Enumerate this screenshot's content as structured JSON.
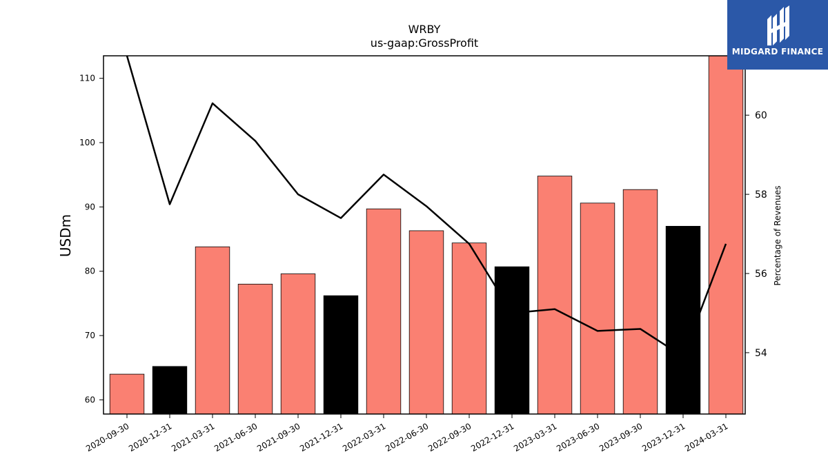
{
  "header": {
    "title_line1": "WRBY",
    "title_line2": "us-gaap:GrossProfit"
  },
  "logo": {
    "text": "MIDGARD FINANCE",
    "icon": "midgard-logo-icon",
    "background": "#2b58a8"
  },
  "chart_data": {
    "type": "bar",
    "title": "WRBY\nus-gaap:GrossProfit",
    "ylabel": "USDm",
    "y2label": "Percentage of Revenues",
    "ylim": [
      57.8,
      113.5
    ],
    "y2lim": [
      52.45,
      61.5
    ],
    "yticks": [
      60,
      70,
      80,
      90,
      100,
      110
    ],
    "y2ticks": [
      54,
      56,
      58,
      60
    ],
    "categories": [
      "2020-09-30",
      "2020-12-31",
      "2021-03-31",
      "2021-06-30",
      "2021-09-30",
      "2021-12-31",
      "2022-03-31",
      "2022-06-30",
      "2022-09-30",
      "2022-12-31",
      "2023-03-31",
      "2023-06-30",
      "2023-09-30",
      "2023-12-31",
      "2024-03-31"
    ],
    "values": [
      64.0,
      65.2,
      83.8,
      78.0,
      79.6,
      76.2,
      89.7,
      86.3,
      84.4,
      80.7,
      94.8,
      90.6,
      92.7,
      87.0,
      113.5
    ],
    "bar_colors": [
      "#fa8072",
      "#000000",
      "#fa8072",
      "#fa8072",
      "#fa8072",
      "#000000",
      "#fa8072",
      "#fa8072",
      "#fa8072",
      "#000000",
      "#fa8072",
      "#fa8072",
      "#fa8072",
      "#000000",
      "#fa8072"
    ],
    "line_series": {
      "axis": "right",
      "color": "#000000",
      "values": [
        61.5,
        57.75,
        60.3,
        59.35,
        58.0,
        57.4,
        58.5,
        57.7,
        56.75,
        55.0,
        55.1,
        54.55,
        54.6,
        53.9,
        56.75
      ]
    },
    "grid": false
  }
}
